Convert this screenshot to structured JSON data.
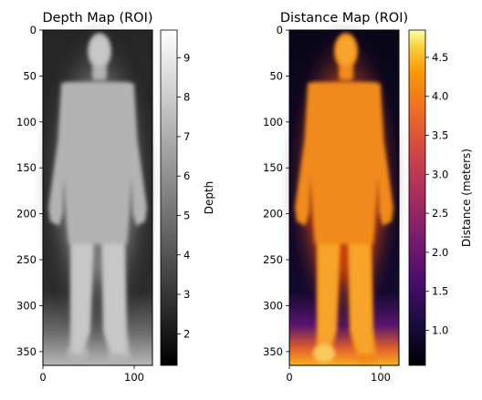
{
  "chart_data": [
    {
      "type": "heatmap",
      "title": "Depth Map (ROI)",
      "xlabel": "",
      "ylabel": "",
      "colormap": "gray",
      "xlim": [
        0,
        120
      ],
      "ylim": [
        365,
        0
      ],
      "xticks": [
        0,
        100
      ],
      "yticks": [
        0,
        50,
        100,
        150,
        200,
        250,
        300,
        350
      ],
      "colorbar": {
        "label": "Depth",
        "range": [
          1.2,
          9.7
        ],
        "ticks": [
          2,
          3,
          4,
          5,
          6,
          7,
          8,
          9
        ]
      },
      "values_note_person": 7.5,
      "values_note_background": 1.8
    },
    {
      "type": "heatmap",
      "title": "Distance Map (ROI)",
      "xlabel": "",
      "ylabel": "",
      "colormap": "inferno",
      "xlim": [
        0,
        120
      ],
      "ylim": [
        365,
        0
      ],
      "xticks": [
        0,
        100
      ],
      "yticks": [
        0,
        50,
        100,
        150,
        200,
        250,
        300,
        350
      ],
      "colorbar": {
        "label": "Distance (meters)",
        "range": [
          0.55,
          4.85
        ],
        "ticks": [
          1.0,
          1.5,
          2.0,
          2.5,
          3.0,
          3.5,
          4.0,
          4.5
        ]
      },
      "values_note_person": 3.8,
      "values_note_background": 0.6
    }
  ]
}
